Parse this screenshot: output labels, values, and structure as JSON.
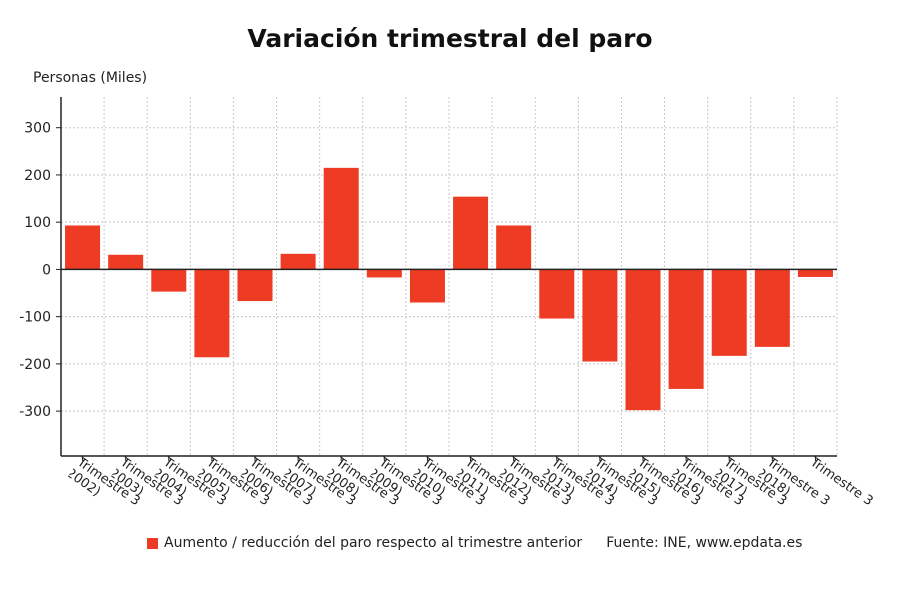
{
  "title": "Variación trimestral del paro",
  "legend": {
    "label": "Aumento / reducción del paro respecto al trimestre anterior",
    "source": "Fuente: INE, www.epdata.es",
    "color": "#ee3b24"
  },
  "chart_data": {
    "type": "bar",
    "ylabel": "Personas (Miles)",
    "xlabel": "",
    "ylim": [
      -395,
      365
    ],
    "yticks": [
      300,
      200,
      100,
      0,
      -100,
      -200,
      -300
    ],
    "grid": true,
    "bar_color": "#ee3b24",
    "categories": [
      "Trimestre 3 (2002)",
      "Trimestre 3 (2003)",
      "Trimestre 3 (2004)",
      "Trimestre 3 (2005)",
      "Trimestre 3 (2006)",
      "Trimestre 3 (2007)",
      "Trimestre 3 (2008)",
      "Trimestre 3 (2009)",
      "Trimestre 3 (2010)",
      "Trimestre 3 (2011)",
      "Trimestre 3 (2012)",
      "Trimestre 3 (2013)",
      "Trimestre 3 (2014)",
      "Trimestre 3 (2015)",
      "Trimestre 3 (2016)",
      "Trimestre 3 (2017)",
      "Trimestre 3 (2018)",
      "Trimestre 3"
    ],
    "values": [
      93,
      31,
      -47,
      -186,
      -67,
      33,
      215,
      -17,
      -70,
      154,
      93,
      -104,
      -195,
      -298,
      -253,
      -183,
      -164,
      -16
    ]
  }
}
